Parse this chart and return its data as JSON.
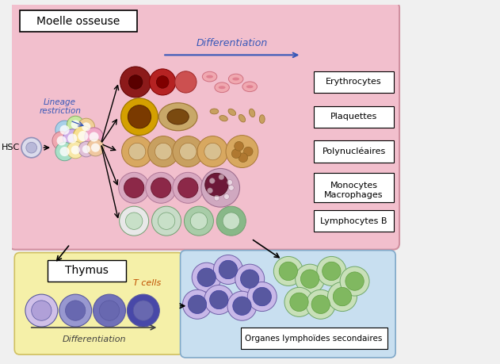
{
  "bg_color": "#f0f0f0",
  "pink_bg": "#f2bfcd",
  "yellow_bg": "#f5f0a8",
  "blue_bg": "#c8dff0",
  "label_moelle": "Moelle osseuse",
  "label_thymus": "Thymus",
  "label_organes": "Organes lymphoïdes secondaires",
  "label_hsc": "HSC",
  "label_lineage": "Lineage\nrestriction",
  "label_diff_top": "Differentiation",
  "label_diff_bottom": "Differentiation",
  "label_tcells": "T cells",
  "cell_labels": [
    "Erythrocytes",
    "Plaquettes",
    "Polynucléaires",
    "Monocytes\nMacrophages",
    "Lymphocytes B"
  ],
  "pink_border": "#d090a0",
  "yellow_border": "#d0c060",
  "blue_border": "#80a8c8"
}
